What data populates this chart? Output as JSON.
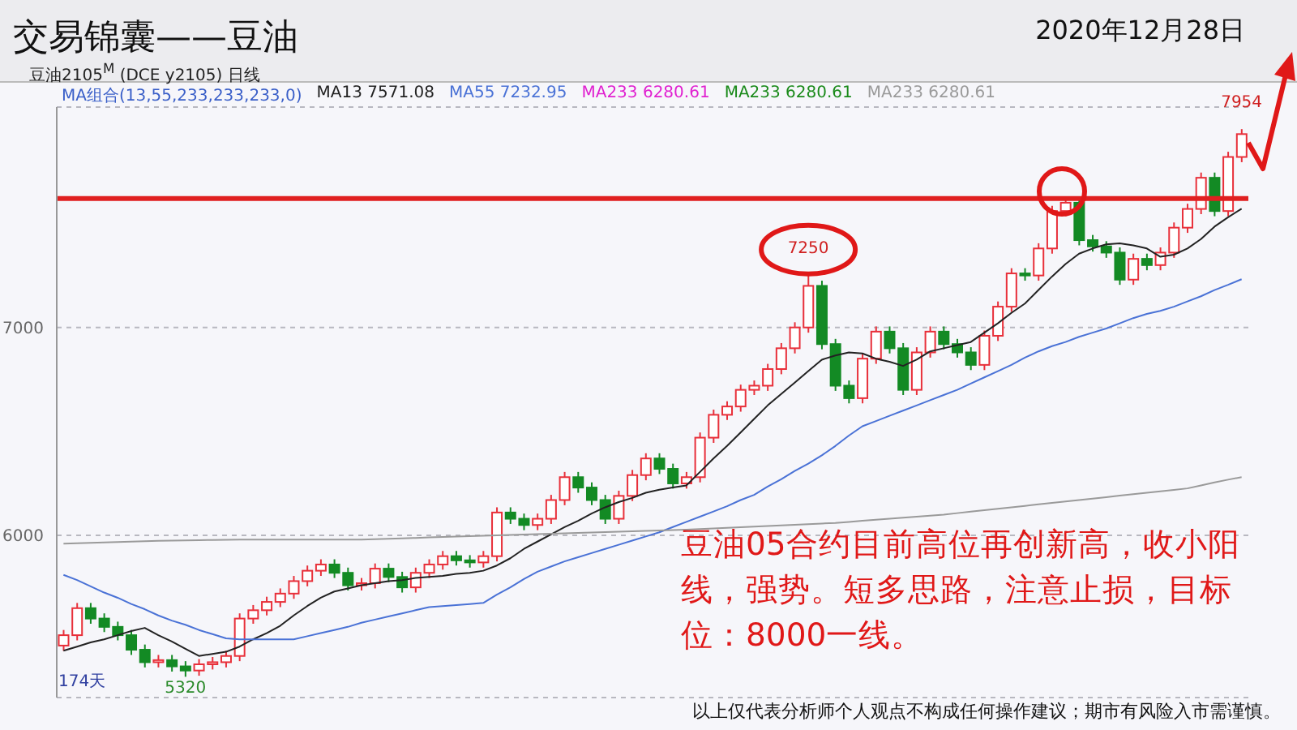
{
  "chart_data": {
    "type": "candlestick",
    "title": "交易锦囊——豆油",
    "subtitle": "2020年12月28日",
    "categories": [
      null,
      null,
      null,
      null,
      null,
      null,
      null,
      null,
      null,
      null,
      null,
      null,
      null,
      null,
      null,
      null,
      null,
      null,
      null,
      null,
      null,
      null,
      null,
      null,
      null,
      null,
      null,
      null,
      null,
      null,
      null,
      null,
      null,
      null,
      null,
      null,
      null,
      null,
      null,
      null,
      null,
      null,
      null,
      null,
      null,
      null,
      null,
      null,
      null,
      null,
      null,
      null,
      null,
      null,
      null,
      null,
      null,
      null,
      null,
      null,
      null,
      null,
      null,
      null,
      null,
      null,
      null,
      null,
      null,
      null,
      null,
      null,
      null,
      null,
      null,
      null,
      null,
      null,
      null,
      null,
      null,
      null,
      null,
      null,
      null,
      null,
      null,
      null
    ],
    "ohlc": [
      [
        5470,
        5545,
        5445,
        5520
      ],
      [
        5520,
        5675,
        5495,
        5650
      ],
      [
        5650,
        5675,
        5575,
        5600
      ],
      [
        5600,
        5625,
        5535,
        5560
      ],
      [
        5560,
        5585,
        5495,
        5520
      ],
      [
        5520,
        5545,
        5425,
        5450
      ],
      [
        5450,
        5475,
        5365,
        5390
      ],
      [
        5390,
        5425,
        5365,
        5400
      ],
      [
        5400,
        5425,
        5345,
        5370
      ],
      [
        5370,
        5395,
        5320,
        5350
      ],
      [
        5350,
        5405,
        5325,
        5380
      ],
      [
        5380,
        5415,
        5355,
        5390
      ],
      [
        5390,
        5445,
        5365,
        5420
      ],
      [
        5420,
        5625,
        5395,
        5600
      ],
      [
        5600,
        5665,
        5575,
        5640
      ],
      [
        5640,
        5705,
        5615,
        5680
      ],
      [
        5680,
        5745,
        5655,
        5720
      ],
      [
        5720,
        5805,
        5695,
        5780
      ],
      [
        5780,
        5855,
        5755,
        5830
      ],
      [
        5830,
        5885,
        5805,
        5860
      ],
      [
        5860,
        5885,
        5795,
        5820
      ],
      [
        5820,
        5845,
        5735,
        5760
      ],
      [
        5760,
        5795,
        5735,
        5770
      ],
      [
        5770,
        5865,
        5745,
        5840
      ],
      [
        5840,
        5865,
        5775,
        5800
      ],
      [
        5800,
        5825,
        5725,
        5750
      ],
      [
        5750,
        5845,
        5725,
        5820
      ],
      [
        5820,
        5885,
        5795,
        5860
      ],
      [
        5860,
        5925,
        5835,
        5900
      ],
      [
        5900,
        5925,
        5855,
        5880
      ],
      [
        5880,
        5905,
        5845,
        5870
      ],
      [
        5870,
        5925,
        5845,
        5900
      ],
      [
        5900,
        6135,
        5875,
        6110
      ],
      [
        6110,
        6135,
        6055,
        6080
      ],
      [
        6080,
        6105,
        6025,
        6050
      ],
      [
        6050,
        6105,
        6025,
        6080
      ],
      [
        6080,
        6195,
        6055,
        6170
      ],
      [
        6170,
        6305,
        6145,
        6280
      ],
      [
        6280,
        6305,
        6205,
        6230
      ],
      [
        6230,
        6255,
        6145,
        6170
      ],
      [
        6170,
        6195,
        6055,
        6080
      ],
      [
        6080,
        6215,
        6055,
        6190
      ],
      [
        6190,
        6315,
        6165,
        6290
      ],
      [
        6290,
        6395,
        6265,
        6370
      ],
      [
        6370,
        6395,
        6295,
        6320
      ],
      [
        6320,
        6345,
        6225,
        6250
      ],
      [
        6250,
        6305,
        6225,
        6280
      ],
      [
        6280,
        6495,
        6255,
        6470
      ],
      [
        6470,
        6605,
        6445,
        6580
      ],
      [
        6580,
        6645,
        6555,
        6620
      ],
      [
        6620,
        6725,
        6595,
        6700
      ],
      [
        6700,
        6745,
        6675,
        6720
      ],
      [
        6720,
        6825,
        6695,
        6800
      ],
      [
        6800,
        6925,
        6775,
        6900
      ],
      [
        6900,
        7025,
        6875,
        7000
      ],
      [
        7000,
        7250,
        6975,
        7200
      ],
      [
        7200,
        7225,
        6895,
        6920
      ],
      [
        6920,
        6945,
        6695,
        6720
      ],
      [
        6720,
        6745,
        6635,
        6660
      ],
      [
        6660,
        6875,
        6635,
        6850
      ],
      [
        6850,
        7005,
        6825,
        6980
      ],
      [
        6980,
        7005,
        6875,
        6900
      ],
      [
        6900,
        6925,
        6675,
        6700
      ],
      [
        6700,
        6905,
        6675,
        6880
      ],
      [
        6880,
        7005,
        6855,
        6980
      ],
      [
        6980,
        7005,
        6895,
        6920
      ],
      [
        6920,
        6945,
        6855,
        6880
      ],
      [
        6880,
        6905,
        6795,
        6820
      ],
      [
        6820,
        6985,
        6795,
        6960
      ],
      [
        6960,
        7125,
        6935,
        7100
      ],
      [
        7100,
        7285,
        7075,
        7260
      ],
      [
        7260,
        7285,
        7225,
        7250
      ],
      [
        7250,
        7405,
        7225,
        7380
      ],
      [
        7380,
        7585,
        7355,
        7560
      ],
      [
        7560,
        7625,
        7535,
        7600
      ],
      [
        7600,
        7625,
        7395,
        7420
      ],
      [
        7420,
        7445,
        7365,
        7390
      ],
      [
        7390,
        7415,
        7335,
        7360
      ],
      [
        7360,
        7385,
        7205,
        7230
      ],
      [
        7230,
        7355,
        7205,
        7330
      ],
      [
        7330,
        7355,
        7275,
        7300
      ],
      [
        7300,
        7385,
        7275,
        7360
      ],
      [
        7360,
        7505,
        7335,
        7480
      ],
      [
        7480,
        7595,
        7455,
        7570
      ],
      [
        7570,
        7745,
        7545,
        7720
      ],
      [
        7720,
        7745,
        7535,
        7560
      ],
      [
        7560,
        7845,
        7535,
        7820
      ],
      [
        7820,
        7954,
        7795,
        7930
      ]
    ],
    "colors": [
      "#e8303a",
      "#e8303a",
      "#138a24",
      "#138a24",
      "#138a24",
      "#138a24",
      "#138a24",
      "#e8303a",
      "#138a24",
      "#138a24",
      "#e8303a",
      "#e8303a",
      "#e8303a",
      "#e8303a",
      "#e8303a",
      "#e8303a",
      "#e8303a",
      "#e8303a",
      "#e8303a",
      "#e8303a",
      "#138a24",
      "#138a24",
      "#e8303a",
      "#e8303a",
      "#138a24",
      "#138a24",
      "#e8303a",
      "#e8303a",
      "#e8303a",
      "#138a24",
      "#138a24",
      "#e8303a",
      "#e8303a",
      "#138a24",
      "#138a24",
      "#e8303a",
      "#e8303a",
      "#e8303a",
      "#138a24",
      "#138a24",
      "#138a24",
      "#e8303a",
      "#e8303a",
      "#e8303a",
      "#138a24",
      "#138a24",
      "#e8303a",
      "#e8303a",
      "#e8303a",
      "#e8303a",
      "#e8303a",
      "#e8303a",
      "#e8303a",
      "#e8303a",
      "#e8303a",
      "#e8303a",
      "#138a24",
      "#138a24",
      "#138a24",
      "#e8303a",
      "#e8303a",
      "#138a24",
      "#138a24",
      "#e8303a",
      "#e8303a",
      "#138a24",
      "#138a24",
      "#138a24",
      "#e8303a",
      "#e8303a",
      "#e8303a",
      "#138a24",
      "#e8303a",
      "#e8303a",
      "#e8303a",
      "#138a24",
      "#138a24",
      "#138a24",
      "#138a24",
      "#e8303a",
      "#138a24",
      "#e8303a",
      "#e8303a",
      "#e8303a",
      "#e8303a",
      "#138a24",
      "#e8303a",
      "#e8303a"
    ],
    "series": [
      {
        "name": "MA13 7571.08",
        "type": "line",
        "color": "#222222",
        "values": [
          5445,
          5465,
          5485,
          5500,
          5520,
          5540,
          5555,
          5520,
          5490,
          5455,
          5420,
          5430,
          5440,
          5465,
          5500,
          5530,
          5565,
          5615,
          5660,
          5700,
          5730,
          5745,
          5760,
          5770,
          5780,
          5785,
          5795,
          5800,
          5805,
          5815,
          5820,
          5830,
          5855,
          5890,
          5935,
          5970,
          6005,
          6040,
          6070,
          6105,
          6135,
          6160,
          6180,
          6205,
          6220,
          6230,
          6240,
          6305,
          6370,
          6430,
          6495,
          6560,
          6625,
          6680,
          6735,
          6790,
          6845,
          6865,
          6880,
          6875,
          6850,
          6835,
          6815,
          6845,
          6885,
          6900,
          6915,
          6930,
          6975,
          7020,
          7070,
          7115,
          7180,
          7245,
          7305,
          7355,
          7380,
          7400,
          7405,
          7395,
          7380,
          7340,
          7350,
          7380,
          7425,
          7485,
          7530,
          7571
        ]
      },
      {
        "name": "MA55 7232.95",
        "type": "line",
        "color": "#4a72d6",
        "values": [
          5810,
          5785,
          5755,
          5725,
          5700,
          5670,
          5645,
          5615,
          5590,
          5570,
          5545,
          5525,
          5505,
          5500,
          5500,
          5500,
          5500,
          5500,
          5515,
          5530,
          5545,
          5560,
          5580,
          5595,
          5610,
          5625,
          5640,
          5655,
          5660,
          5665,
          5670,
          5675,
          5715,
          5750,
          5790,
          5825,
          5850,
          5875,
          5895,
          5915,
          5935,
          5955,
          5975,
          5995,
          6015,
          6040,
          6065,
          6090,
          6115,
          6140,
          6170,
          6195,
          6235,
          6270,
          6310,
          6345,
          6385,
          6430,
          6480,
          6525,
          6550,
          6575,
          6600,
          6625,
          6650,
          6675,
          6700,
          6730,
          6760,
          6790,
          6820,
          6855,
          6885,
          6910,
          6930,
          6955,
          6975,
          6995,
          7020,
          7045,
          7065,
          7080,
          7100,
          7125,
          7150,
          7180,
          7205,
          7232
        ]
      },
      {
        "name": "MA233 6280.61",
        "type": "line",
        "color": "#9a9a9a",
        "values": [
          5960,
          5962,
          5964,
          5966,
          5968,
          5970,
          5972,
          5974,
          5975,
          5976,
          5977,
          5978,
          5979,
          5980,
          5980,
          5980,
          5980,
          5980,
          5980,
          5980,
          5980,
          5980,
          5980,
          5982,
          5984,
          5986,
          5988,
          5990,
          5992,
          5994,
          5996,
          5998,
          6000,
          6002,
          6004,
          6006,
          6008,
          6010,
          6012,
          6014,
          6016,
          6018,
          6020,
          6022,
          6024,
          6026,
          6028,
          6030,
          6033,
          6036,
          6039,
          6042,
          6045,
          6048,
          6051,
          6054,
          6057,
          6060,
          6065,
          6070,
          6075,
          6080,
          6085,
          6090,
          6095,
          6100,
          6107,
          6114,
          6121,
          6128,
          6135,
          6142,
          6149,
          6156,
          6163,
          6170,
          6177,
          6184,
          6191,
          6198,
          6205,
          6212,
          6219,
          6226,
          6240,
          6255,
          6268,
          6280
        ]
      }
    ],
    "ylim": [
      5220,
      8060
    ],
    "yticks": [
      6000,
      7000
    ],
    "grid": "y",
    "legend": "top left",
    "ref_lines": [
      {
        "axis": "y",
        "value": 7620,
        "color": "#e02020"
      }
    ],
    "annotations": [
      "MA组合(13,55,233,233,233,0)",
      "MA233 6280.61",
      "MA233 6280.61",
      "豆油2105$^{M}$ (DCE y2105) 日线",
      {
        "text": "7250",
        "y": 7250
      },
      {
        "text": "7954",
        "y": 7954
      },
      {
        "text": "5320",
        "y": 5320
      },
      "174天",
      "豆油05合约目前高位再创新高，收小阳线，强势。短多思路，注意止损，目标位：8000一线。",
      "以上仅代表分析师个人观点不构成任何操作建议；期市有风险入市需谨慎。"
    ]
  }
}
